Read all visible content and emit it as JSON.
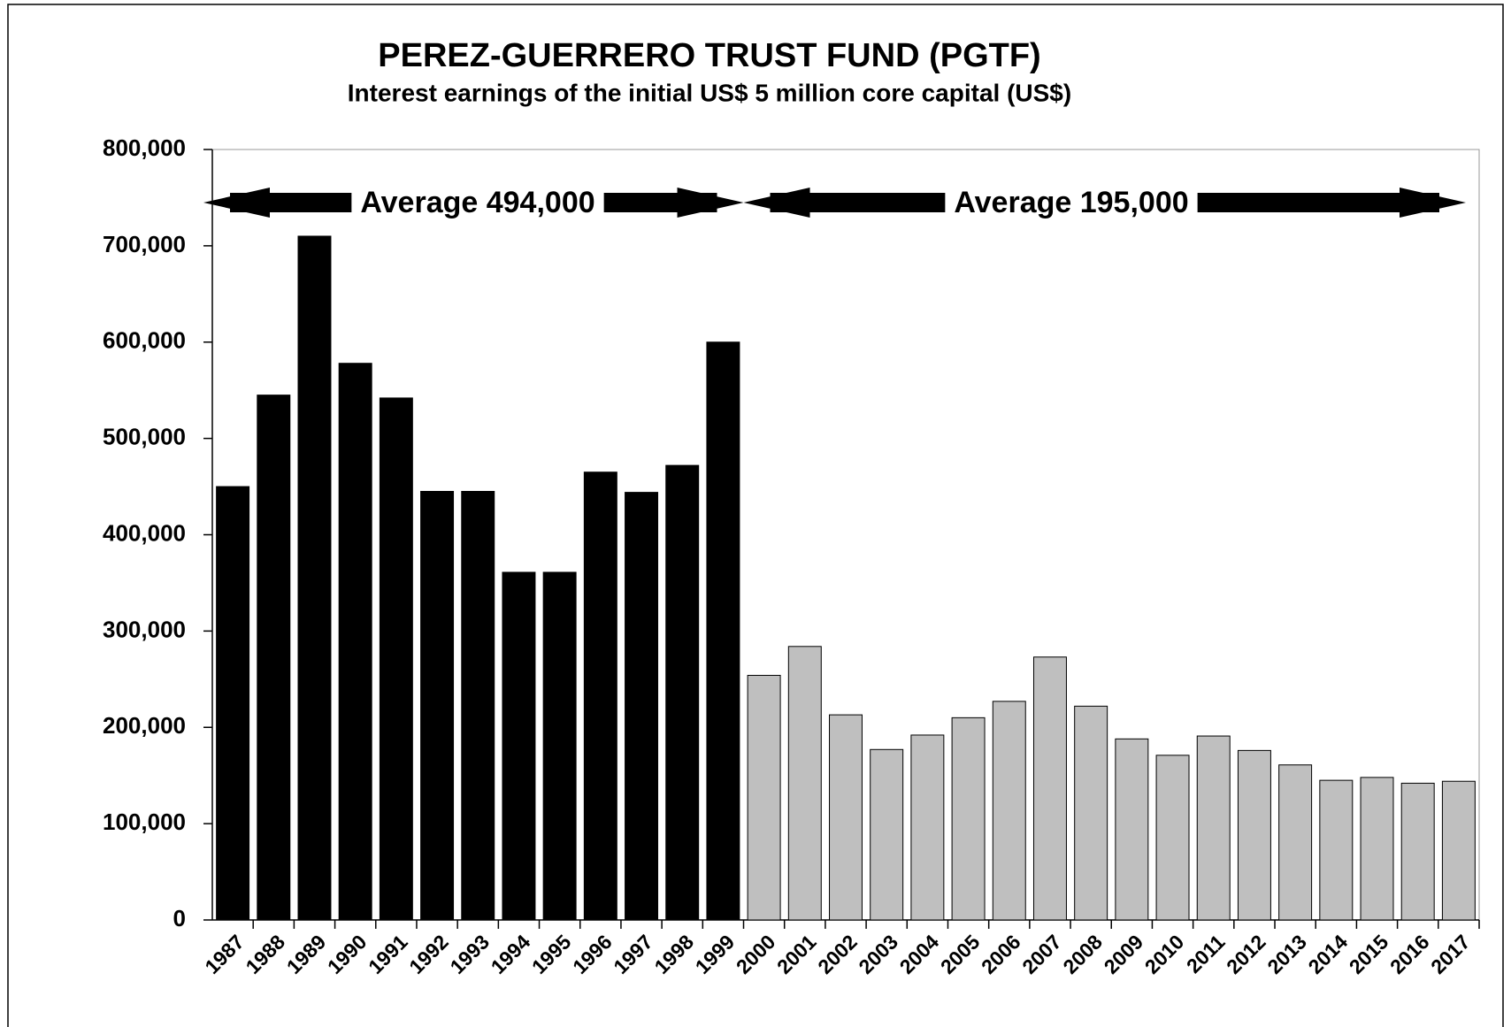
{
  "chart_data": {
    "type": "bar",
    "title": "PEREZ-GUERRERO TRUST FUND (PGTF)",
    "subtitle": "Interest earnings of the initial US$ 5 million core capital (US$)",
    "annotations": [
      "Average 494,000",
      "Average 195,000"
    ],
    "categories": [
      "1987",
      "1988",
      "1989",
      "1990",
      "1991",
      "1992",
      "1993",
      "1994",
      "1995",
      "1996",
      "1997",
      "1998",
      "1999",
      "2000",
      "2001",
      "2002",
      "2003",
      "2004",
      "2005",
      "2006",
      "2007",
      "2008",
      "2009",
      "2010",
      "2011",
      "2012",
      "2013",
      "2014",
      "2015",
      "2016",
      "2017"
    ],
    "values": [
      450000,
      545000,
      710000,
      578000,
      542000,
      445000,
      445000,
      361000,
      361000,
      465000,
      444000,
      472000,
      600000,
      254000,
      284000,
      213000,
      177000,
      192000,
      210000,
      227000,
      273000,
      222000,
      188000,
      171000,
      191000,
      176000,
      161000,
      145000,
      148000,
      142000,
      144000
    ],
    "colors": [
      "#000000",
      "#000000",
      "#000000",
      "#000000",
      "#000000",
      "#000000",
      "#000000",
      "#000000",
      "#000000",
      "#000000",
      "#000000",
      "#000000",
      "#000000",
      "#bfbfbf",
      "#bfbfbf",
      "#bfbfbf",
      "#bfbfbf",
      "#bfbfbf",
      "#bfbfbf",
      "#bfbfbf",
      "#bfbfbf",
      "#bfbfbf",
      "#bfbfbf",
      "#bfbfbf",
      "#bfbfbf",
      "#bfbfbf",
      "#bfbfbf",
      "#bfbfbf",
      "#bfbfbf",
      "#bfbfbf",
      "#bfbfbf"
    ],
    "ylim": [
      0,
      800000
    ],
    "yticks": [
      0,
      {
        "value": 100000,
        "label": "100,000"
      },
      {
        "value": 200000,
        "label": "200,000"
      },
      {
        "value": 300000,
        "label": "300,000"
      },
      {
        "value": 400000,
        "label": "400,000"
      },
      {
        "value": 500000,
        "label": "500,000"
      },
      {
        "value": 600000,
        "label": "600,000"
      },
      {
        "value": 700000,
        "label": "700,000"
      },
      {
        "value": 800000,
        "label": "800,000"
      }
    ],
    "grid": false
  }
}
